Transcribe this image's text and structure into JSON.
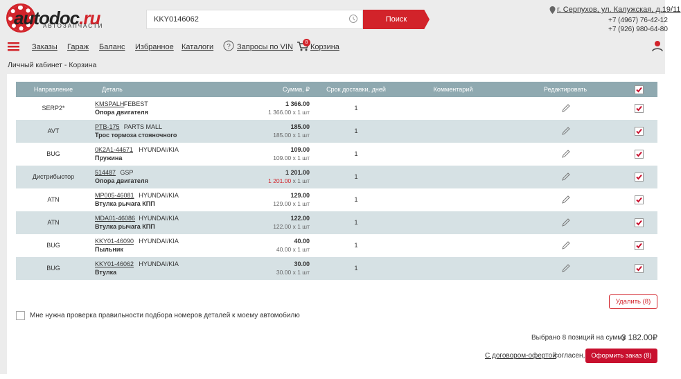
{
  "header": {
    "logo": {
      "name": "autodoc",
      "tld": ".ru",
      "tagline": "АВТОЗАПЧАСТИ"
    },
    "search_value": "KKY0146062",
    "search_button": "Поиск",
    "address": "г. Серпухов, ул. Калужская, д.19/11",
    "phones": [
      "+7 (4967) 76-42-12",
      "+7 (926) 980-64-80"
    ]
  },
  "nav": {
    "items": [
      "Заказы",
      "Гараж",
      "Баланс",
      "Избранное",
      "Каталоги",
      "Запросы по VIN",
      "Корзина"
    ],
    "cart_badge": "8"
  },
  "breadcrumb": "Личный кабинет - Корзина",
  "table": {
    "headers": [
      "Направление",
      "Деталь",
      "Сумма, ₽",
      "Срок доставки, дней",
      "Комментарий",
      "Редактировать"
    ],
    "rows": [
      {
        "direction": "SERP2*",
        "article": "KMSPALH",
        "brand": "FEBEST",
        "name": "Опора двигателя",
        "sum": "1 366.00",
        "unit_price": "1 366.00",
        "qty": "x 1 шт",
        "days": "1"
      },
      {
        "direction": "AVT",
        "article": "PTB-175",
        "brand": "PARTS MALL",
        "name": "Трос тормоза стояночного",
        "sum": "185.00",
        "unit_price": "185.00",
        "qty": "x 1 шт",
        "days": "1"
      },
      {
        "direction": "BUG",
        "article": "0K2A1-44671",
        "brand": "HYUNDAI/KIA",
        "name": "Пружина",
        "sum": "109.00",
        "unit_price": "109.00",
        "qty": "x 1 шт",
        "days": "1"
      },
      {
        "direction": "Дистрибьютор",
        "article": "514487",
        "brand": "GSP",
        "name": "Опора двигателя",
        "sum": "1 201.00",
        "unit_price": "1 201.00",
        "qty": "x 1 шт",
        "days": "1",
        "price_alert": true
      },
      {
        "direction": "ATN",
        "article": "MP005-46081",
        "brand": "HYUNDAI/KIA",
        "name": "Втулка рычага КПП",
        "sum": "129.00",
        "unit_price": "129.00",
        "qty": "x 1 шт",
        "days": "1"
      },
      {
        "direction": "ATN",
        "article": "MDA01-46086",
        "brand": "HYUNDAI/KIA",
        "name": "Втулка рычага КПП",
        "sum": "122.00",
        "unit_price": "122.00",
        "qty": "x 1 шт",
        "days": "1"
      },
      {
        "direction": "BUG",
        "article": "KKY01-46090",
        "brand": "HYUNDAI/KIA",
        "name": "Пыльник",
        "sum": "40.00",
        "unit_price": "40.00",
        "qty": "x 1 шт",
        "days": "1"
      },
      {
        "direction": "BUG",
        "article": "KKY01-46062",
        "brand": "HYUNDAI/KIA",
        "name": "Втулка",
        "sum": "30.00",
        "unit_price": "30.00",
        "qty": "x 1 шт",
        "days": "1"
      }
    ]
  },
  "footer": {
    "delete_button": "Удалить (8)",
    "check_label": "Мне нужна проверка правильности подбора номеров деталей к моему автомобилю",
    "summary": "Выбрано 8 позиций на сумму",
    "total": "3 182.00₽",
    "offer_link": "С договором-офертой",
    "offer_text": "согласен,",
    "order_button": "Оформить заказ (8)"
  }
}
